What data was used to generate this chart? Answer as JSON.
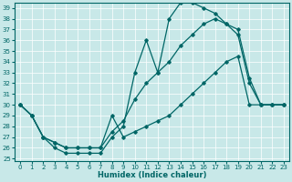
{
  "xlabel": "Humidex (Indice chaleur)",
  "ylabel": "",
  "bg_color": "#c8e8e8",
  "line_color": "#006666",
  "ylim": [
    25,
    39
  ],
  "xlim": [
    0,
    23
  ],
  "yticks": [
    25,
    26,
    27,
    28,
    29,
    30,
    31,
    32,
    33,
    34,
    35,
    36,
    37,
    38,
    39
  ],
  "xticks": [
    0,
    1,
    2,
    3,
    4,
    5,
    6,
    7,
    8,
    9,
    10,
    11,
    12,
    13,
    14,
    15,
    16,
    17,
    18,
    19,
    20,
    21,
    22,
    23
  ],
  "line1_x": [
    0,
    1,
    2,
    3,
    4,
    5,
    6,
    7,
    8,
    9,
    10,
    11,
    12,
    13,
    14,
    15,
    16,
    17,
    18,
    19,
    20,
    21,
    22,
    23
  ],
  "line1_y": [
    30,
    29,
    27,
    26,
    25.5,
    25.5,
    25.5,
    25.5,
    27,
    28,
    33,
    36,
    33,
    38,
    39.5,
    39.5,
    39,
    38.5,
    37.5,
    36.5,
    32,
    30,
    30,
    30
  ],
  "line2_x": [
    0,
    1,
    2,
    3,
    4,
    5,
    6,
    7,
    8,
    9,
    10,
    11,
    12,
    13,
    14,
    15,
    16,
    17,
    18,
    19,
    20,
    21,
    22,
    23
  ],
  "line2_y": [
    30,
    29,
    27,
    26.5,
    26,
    26,
    26,
    26,
    27.5,
    28.5,
    30.5,
    32,
    33,
    34,
    35.5,
    36.5,
    37.5,
    38,
    37.5,
    37,
    32.5,
    30,
    30,
    30
  ],
  "line3_x": [
    0,
    1,
    2,
    3,
    4,
    5,
    6,
    7,
    8,
    9,
    10,
    11,
    12,
    13,
    14,
    15,
    16,
    17,
    18,
    19,
    20,
    21,
    22,
    23
  ],
  "line3_y": [
    30,
    29,
    27,
    26.5,
    26,
    26,
    26,
    26,
    29,
    27,
    27.5,
    28,
    28.5,
    29,
    30,
    31,
    32,
    33,
    34,
    34.5,
    30,
    30,
    30,
    30
  ]
}
